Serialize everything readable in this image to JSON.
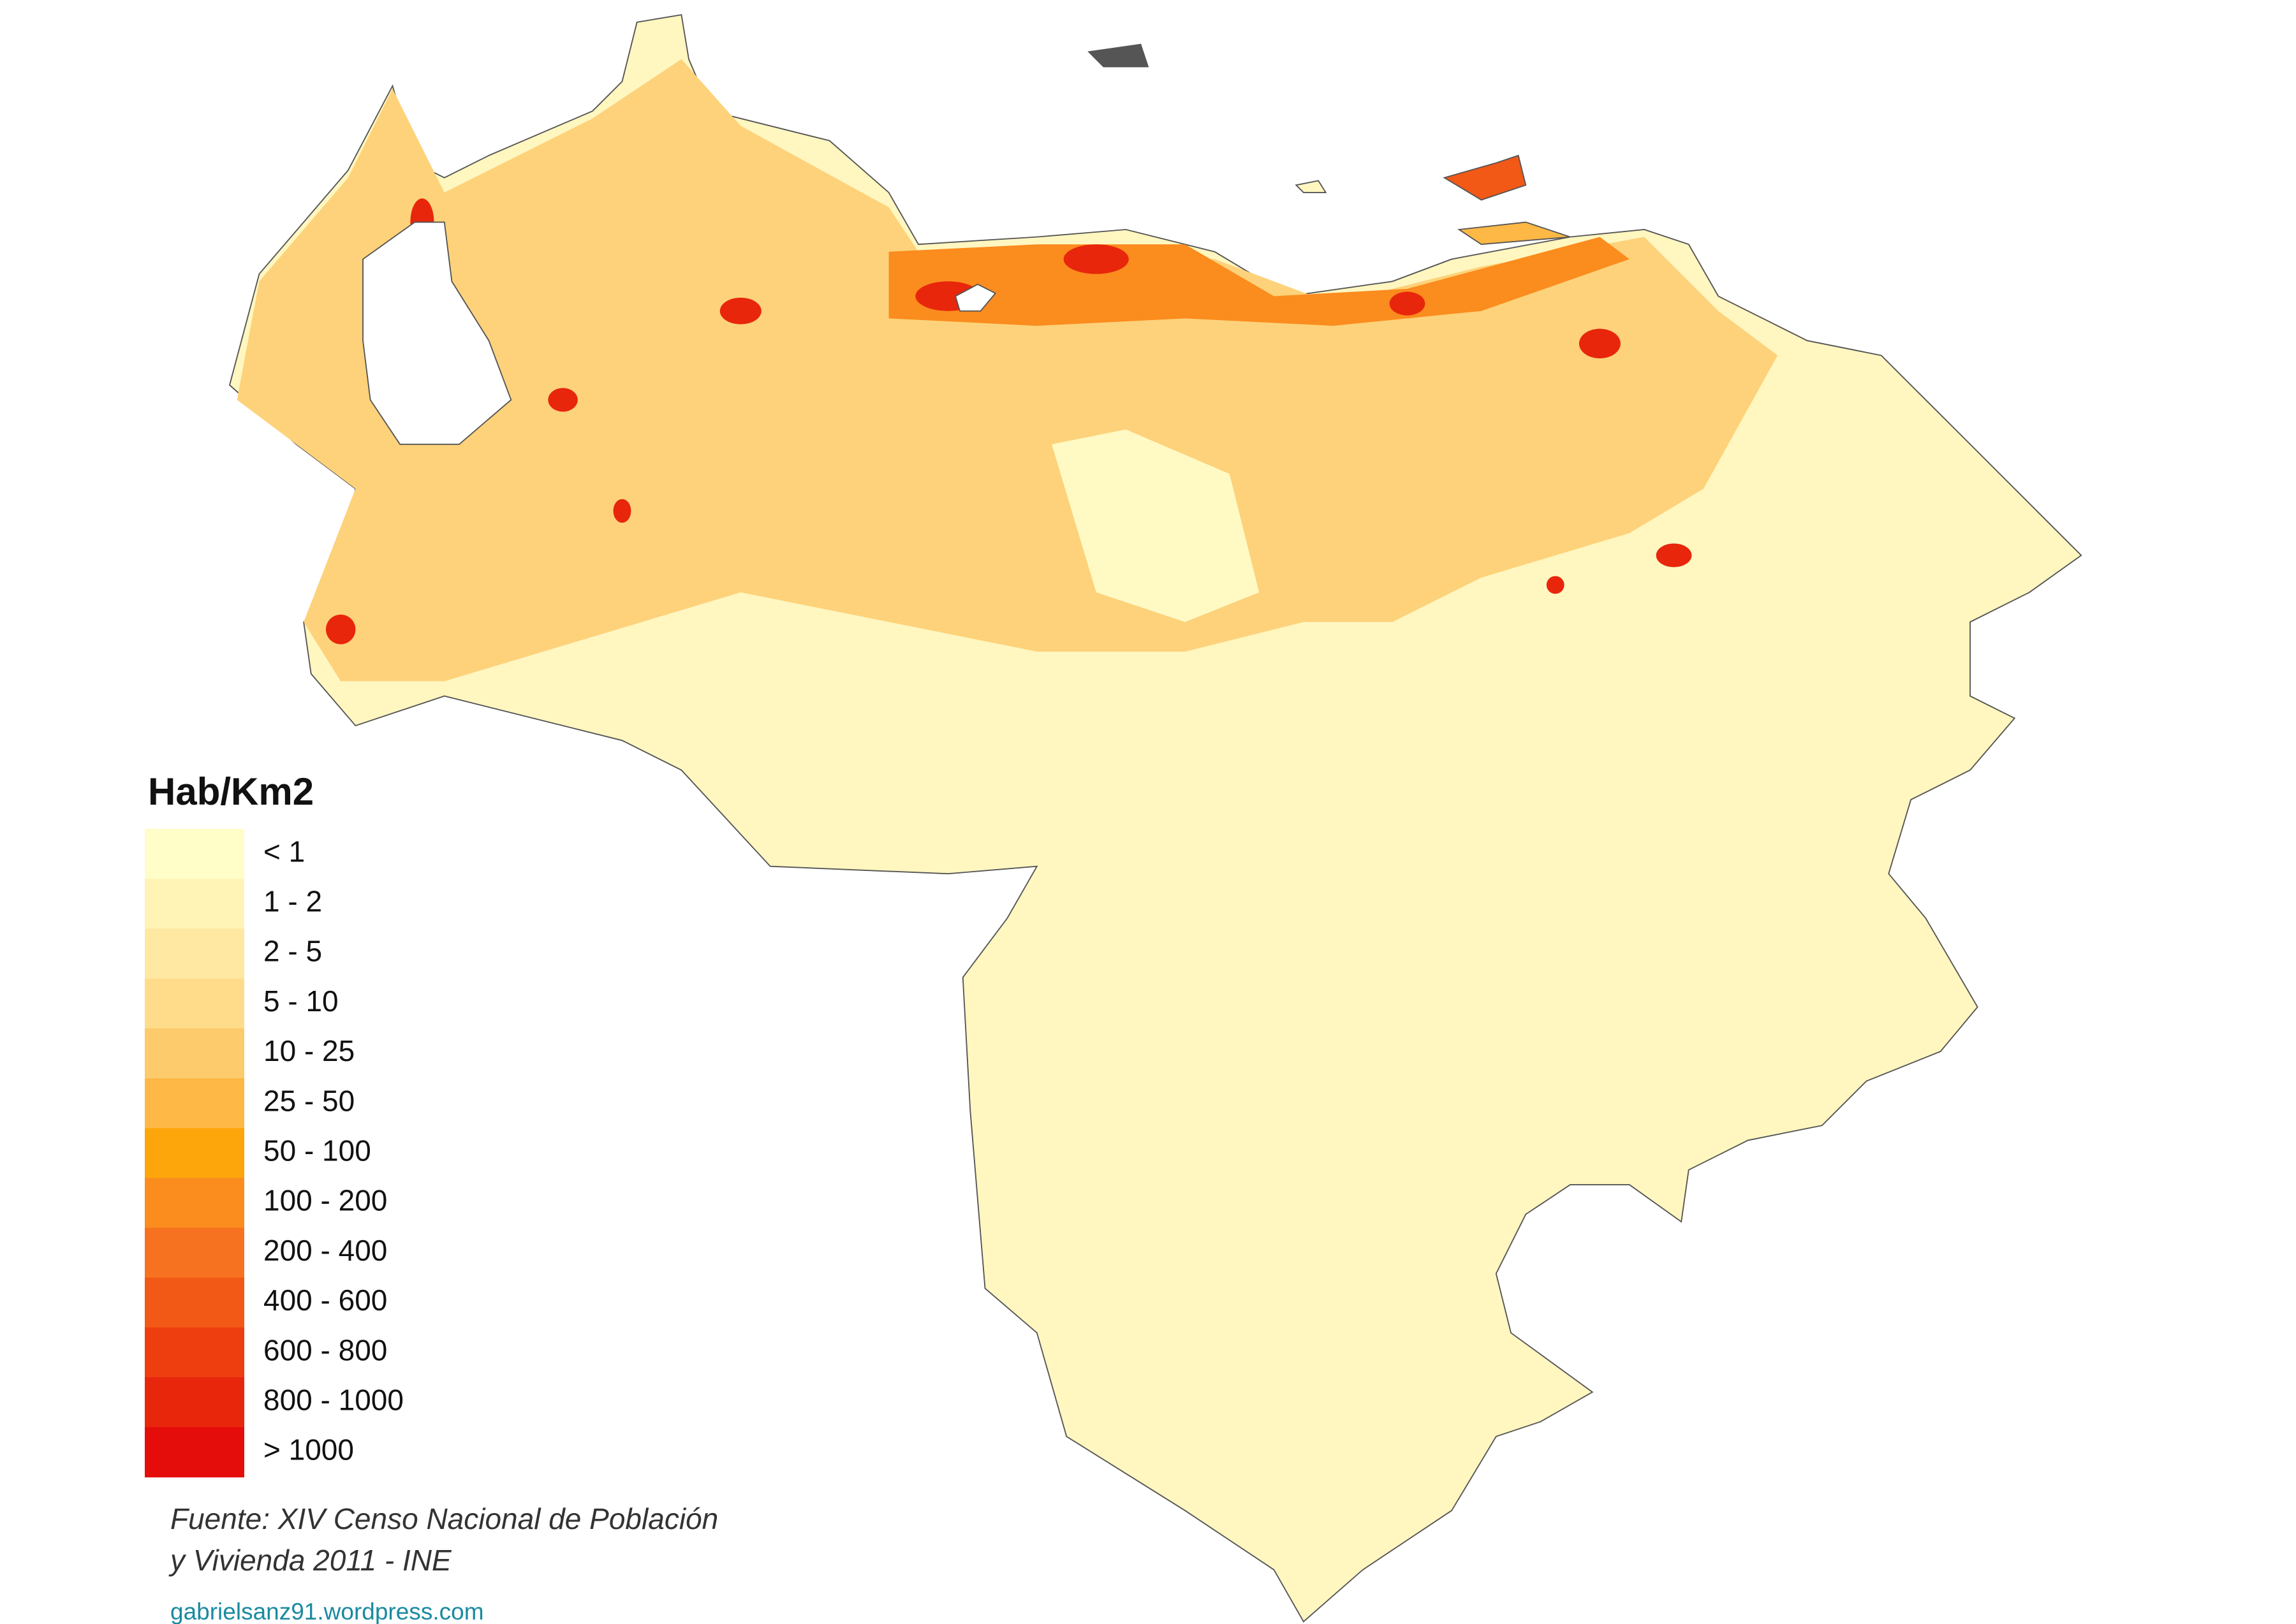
{
  "legend": {
    "title": "Hab/Km2",
    "items": [
      {
        "label": "< 1",
        "color": "#fffdc8"
      },
      {
        "label": "1 - 2",
        "color": "#fff3b6"
      },
      {
        "label": "2 - 5",
        "color": "#ffe8a2"
      },
      {
        "label": "5 - 10",
        "color": "#fedc8a"
      },
      {
        "label": "10 - 25",
        "color": "#fdcb6c"
      },
      {
        "label": "25 - 50",
        "color": "#fdb846"
      },
      {
        "label": "50 - 100",
        "color": "#fca60c"
      },
      {
        "label": "100 - 200",
        "color": "#fb8c1e"
      },
      {
        "label": "200 - 400",
        "color": "#f77220"
      },
      {
        "label": "400 - 600",
        "color": "#f25816"
      },
      {
        "label": "600 - 800",
        "color": "#ee3e10"
      },
      {
        "label": "800 - 1000",
        "color": "#e8260c"
      },
      {
        "label": "> 1000",
        "color": "#e40d0b"
      }
    ]
  },
  "source": [
    "Fuente: XIV Censo Nacional de Población",
    "y Vivienda 2011 - INE"
  ],
  "credit": "gabrielsanz91.wordpress.com"
}
